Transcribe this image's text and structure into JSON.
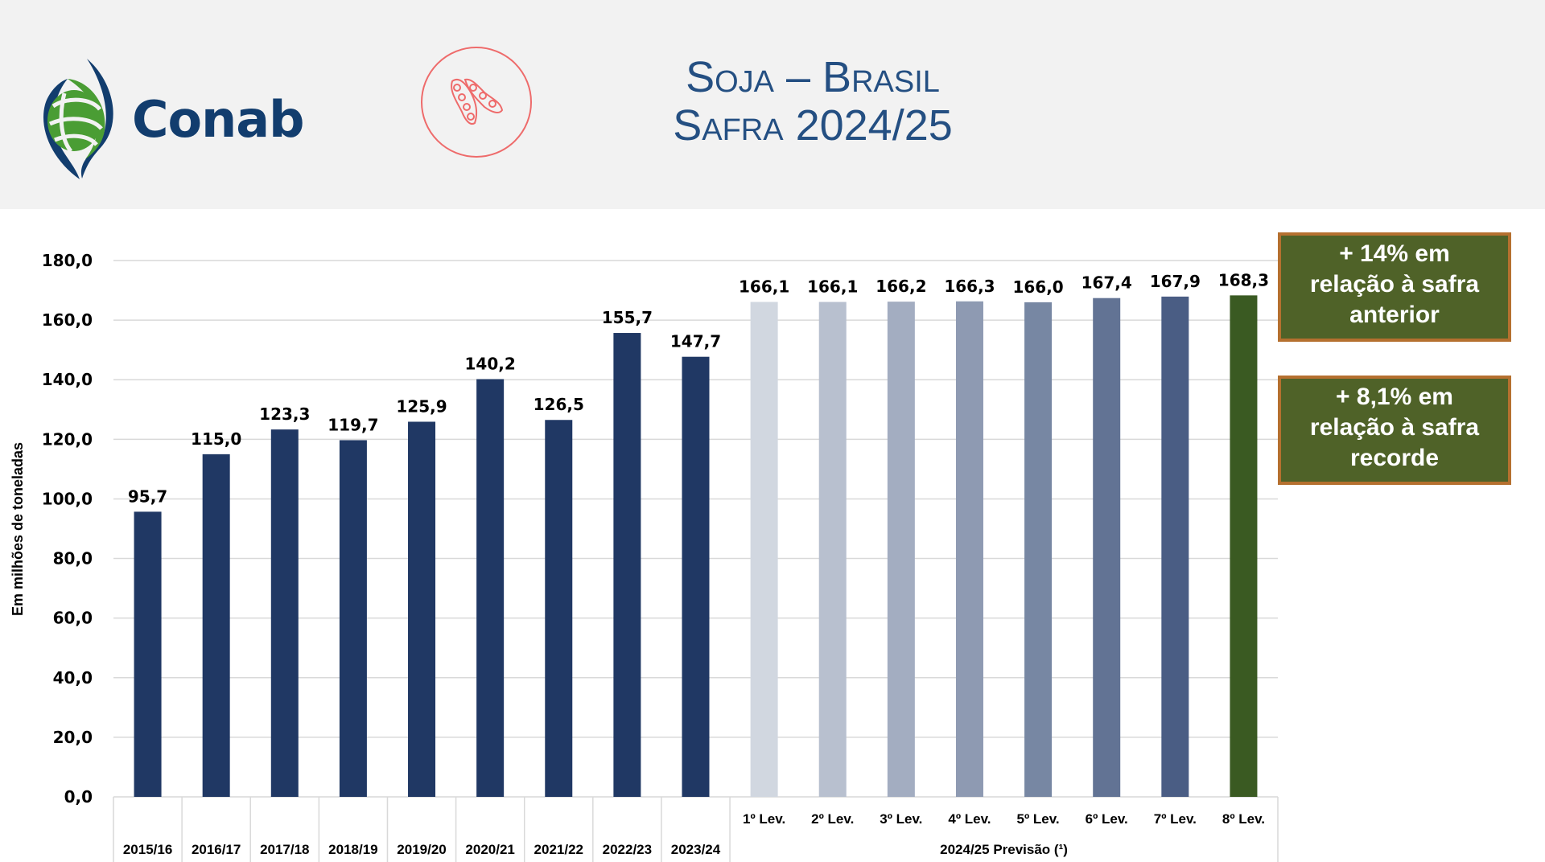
{
  "header": {
    "logo_text": "Conab",
    "title_line1": "Soja – Brasil",
    "title_line2": "Safra 2024/25",
    "icon": "soybean-pod-icon",
    "colors": {
      "title": "#244f82",
      "logo_blue": "#123d6e",
      "logo_green": "#4a9d34",
      "badge": "#ee6b6b"
    }
  },
  "notes": [
    {
      "lines": [
        "+ 14% em",
        "relação à safra",
        "anterior"
      ]
    },
    {
      "lines": [
        "+ 8,1% em",
        "relação à safra",
        "recorde"
      ]
    }
  ],
  "chart_data": {
    "type": "bar",
    "title": "Soja – Brasil Safra 2024/25",
    "ylabel": "Em milhões de toneladas",
    "xlabel": "",
    "ylim": [
      0,
      180
    ],
    "yticks": [
      0,
      20,
      40,
      60,
      80,
      100,
      120,
      140,
      160,
      180
    ],
    "ytick_labels": [
      "0,0",
      "20,0",
      "40,0",
      "60,0",
      "80,0",
      "100,0",
      "120,0",
      "140,0",
      "160,0",
      "180,0"
    ],
    "grid": true,
    "categories": [
      "2015/16",
      "2016/17",
      "2017/18",
      "2018/19",
      "2019/20",
      "2020/21",
      "2021/22",
      "2022/23",
      "2023/24",
      "1º Lev.",
      "2º Lev.",
      "3º Lev.",
      "4º Lev.",
      "5º Lev.",
      "6º Lev.",
      "7º Lev.",
      "8º Lev."
    ],
    "values": [
      95.7,
      115.0,
      123.3,
      119.7,
      125.9,
      140.2,
      126.5,
      155.7,
      147.7,
      166.1,
      166.1,
      166.2,
      166.3,
      166.0,
      167.4,
      167.9,
      168.3
    ],
    "value_labels": [
      "95,7",
      "115,0",
      "123,3",
      "119,7",
      "125,9",
      "140,2",
      "126,5",
      "155,7",
      "147,7",
      "166,1",
      "166,1",
      "166,2",
      "166,3",
      "166,0",
      "167,4",
      "167,9",
      "168,3"
    ],
    "colors": [
      "#203864",
      "#203864",
      "#203864",
      "#203864",
      "#203864",
      "#203864",
      "#203864",
      "#203864",
      "#203864",
      "#d1d7e0",
      "#b8c0cf",
      "#a3adc1",
      "#8e9ab2",
      "#7787a3",
      "#627394",
      "#4a5d84",
      "#3a5a22"
    ],
    "group_label": "2024/25 Previsão (¹)",
    "group_start_index": 9
  }
}
